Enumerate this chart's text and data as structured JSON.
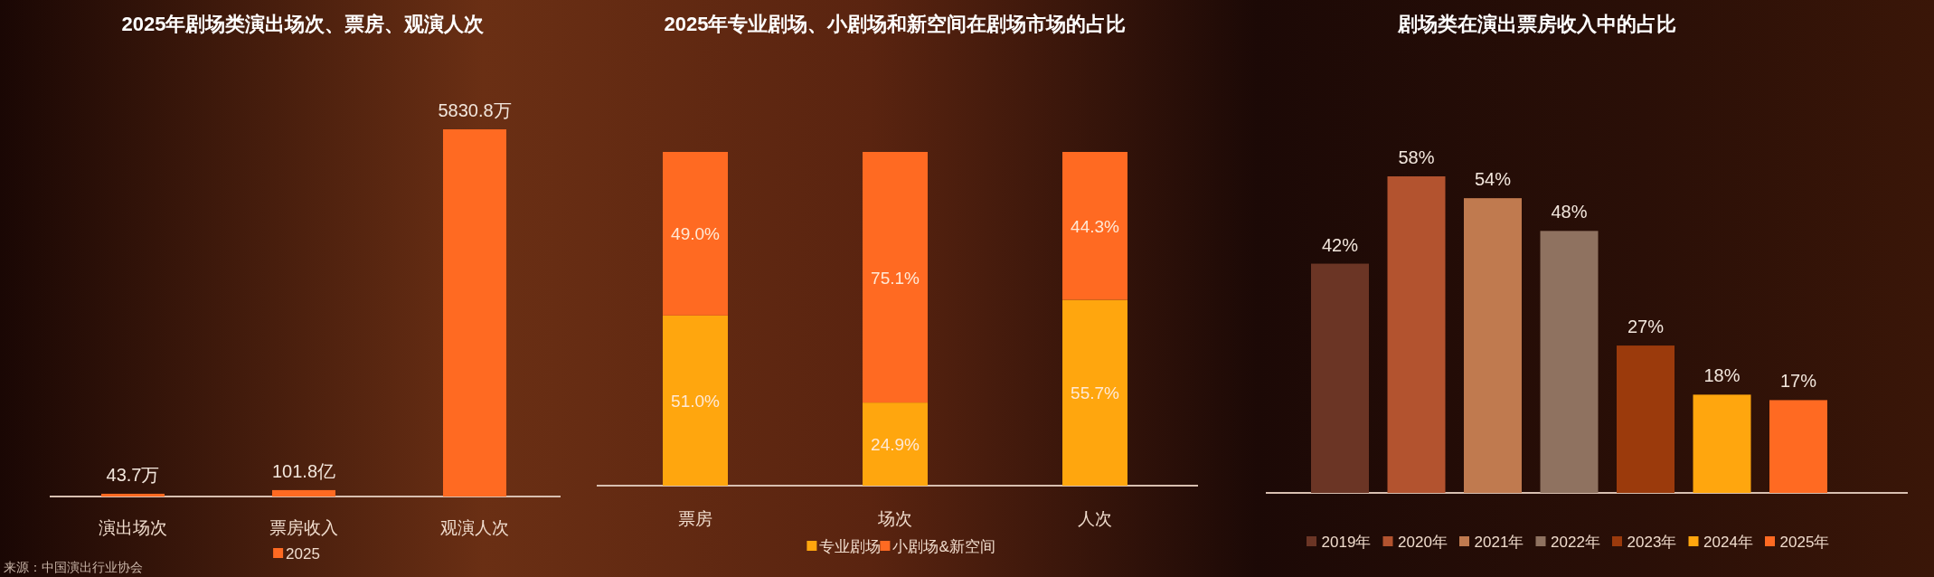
{
  "chart_data": [
    {
      "type": "bar",
      "title": "2025年剧场类演出场次、票房、观演人次",
      "categories": [
        "演出场次",
        "票房收入",
        "观演人次"
      ],
      "legend": "bottom",
      "series": [
        {
          "name": "2025",
          "color": "#ff6a22",
          "values": [
            43.7,
            101.8,
            5830.8
          ],
          "value_labels": [
            "43.7万",
            "101.8亿",
            "5830.8万"
          ]
        }
      ],
      "annotations": [
        "来源：中国演出行业协会"
      ]
    },
    {
      "type": "bar",
      "stacked": true,
      "title": "2025年专业剧场、小剧场和新空间在剧场市场的占比",
      "categories": [
        "票房",
        "场次",
        "人次"
      ],
      "legend": "bottom",
      "series": [
        {
          "name": "专业剧场",
          "color": "#ffa60e",
          "values": [
            51.0,
            24.9,
            55.7
          ],
          "value_labels": [
            "51.0%",
            "24.9%",
            "55.7%"
          ]
        },
        {
          "name": "小剧场&新空间",
          "color": "#ff6a22",
          "values": [
            49.0,
            75.1,
            44.3
          ],
          "value_labels": [
            "49.0%",
            "75.1%",
            "44.3%"
          ]
        }
      ]
    },
    {
      "type": "bar",
      "title": "剧场类在演出票房收入中的占比",
      "categories": [
        "2019年",
        "2020年",
        "2021年",
        "2022年",
        "2023年",
        "2024年",
        "2025年"
      ],
      "values": [
        42,
        58,
        54,
        48,
        27,
        18,
        17
      ],
      "value_labels": [
        "42%",
        "58%",
        "54%",
        "48%",
        "27%",
        "18%",
        "17%"
      ],
      "colors": [
        "#6b3525",
        "#b3532f",
        "#c07a4f",
        "#8f7260",
        "#9b3a0c",
        "#ffa60e",
        "#ff6a22"
      ]
    }
  ]
}
